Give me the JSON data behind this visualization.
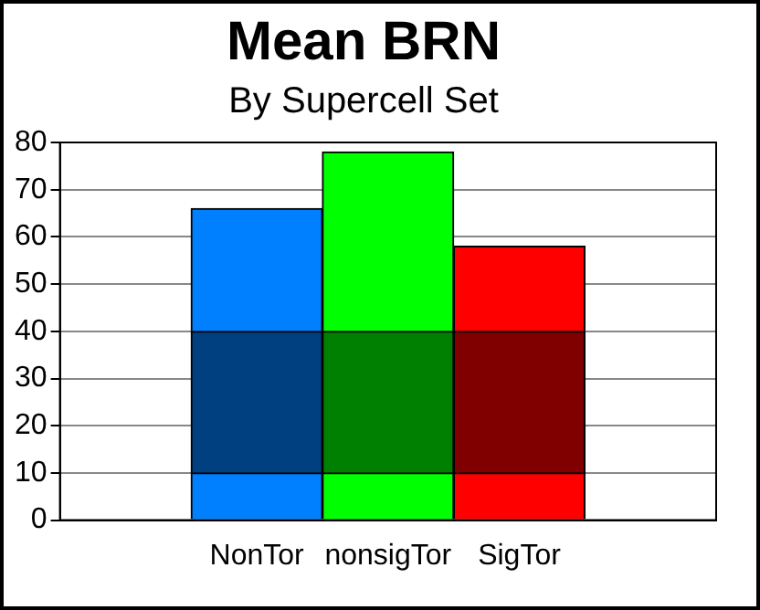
{
  "chart_data": {
    "type": "bar",
    "title": "Mean BRN",
    "subtitle": "By Supercell Set",
    "categories": [
      null,
      "NonTor",
      "nonsigTor",
      "SigTor",
      null
    ],
    "stacked": true,
    "series": [
      {
        "values": [
          null,
          10,
          10,
          10,
          null
        ],
        "colors": [
          "#0080ff",
          "#0080ff",
          "#00ff00",
          "#ff0000",
          "#ff0000"
        ]
      },
      {
        "values": [
          null,
          30,
          30,
          30,
          null
        ],
        "colors": [
          "#004080",
          "#004080",
          "#008000",
          "#800000",
          "#800000"
        ]
      },
      {
        "values": [
          null,
          26,
          38,
          18,
          null
        ],
        "colors": [
          "#0080ff",
          "#0080ff",
          "#00ff00",
          "#ff0000",
          "#ff0000"
        ]
      }
    ],
    "ylim": [
      0,
      80
    ],
    "yticks": [
      0,
      10,
      20,
      30,
      40,
      50,
      60,
      70,
      80
    ],
    "grid": "y",
    "legend": false
  }
}
